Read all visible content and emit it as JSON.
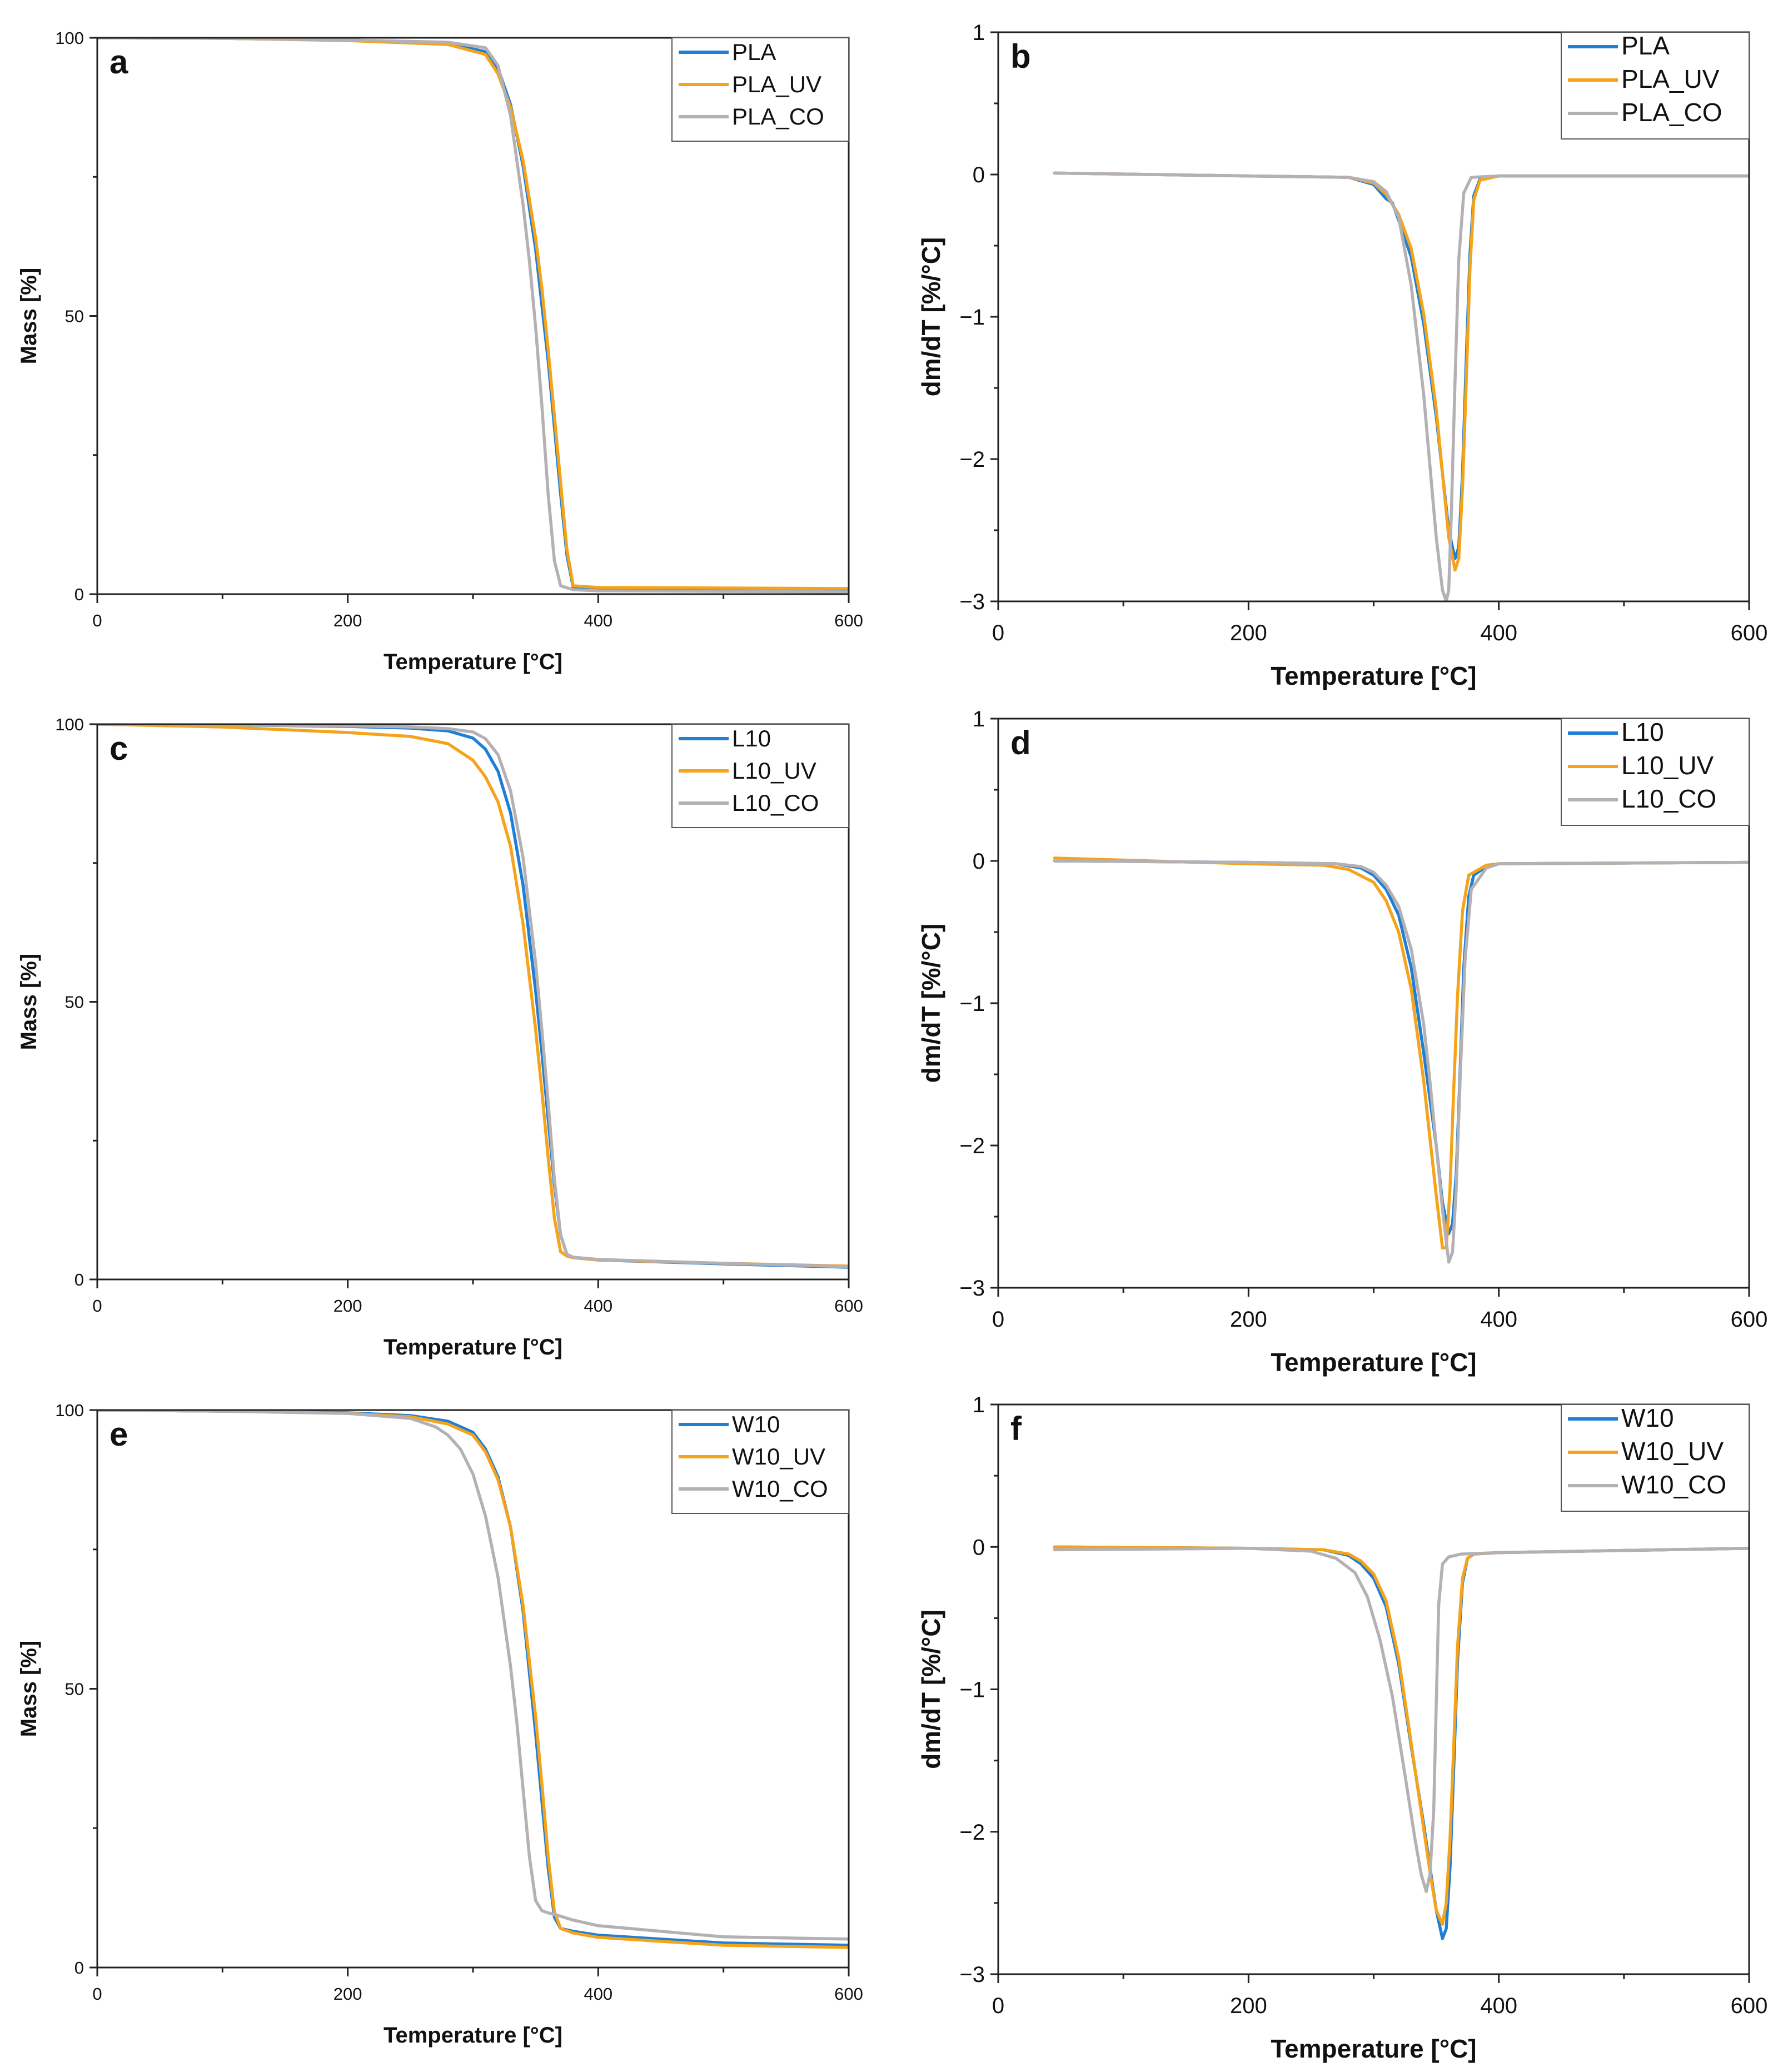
{
  "colors": {
    "PLA": "#1f7fd6",
    "UV": "#f5a31a",
    "CO": "#b4b0b4"
  },
  "chart_data": [
    {
      "panel": "a",
      "type": "line",
      "xlabel": "Temperature [°C]",
      "ylabel": "Mass [%]",
      "xlim": [
        0,
        600
      ],
      "ylim": [
        0,
        100
      ],
      "xticks": [
        "0",
        "200",
        "400",
        "600"
      ],
      "yticks": [
        "0",
        "50",
        "100"
      ],
      "legend": "top-right",
      "series": [
        {
          "name": "PLA",
          "x": [
            0,
            100,
            200,
            280,
            310,
            320,
            330,
            340,
            350,
            355,
            360,
            365,
            370,
            375,
            380,
            400,
            500,
            600
          ],
          "y": [
            100,
            99.9,
            99.6,
            99,
            97.5,
            94.5,
            88,
            77,
            62,
            52,
            42,
            30,
            18,
            7,
            1.2,
            1.0,
            0.8,
            0.6
          ]
        },
        {
          "name": "PLA_UV",
          "x": [
            0,
            100,
            200,
            280,
            310,
            320,
            330,
            340,
            350,
            355,
            360,
            365,
            370,
            375,
            380,
            400,
            500,
            600
          ],
          "y": [
            100,
            99.9,
            99.5,
            98.8,
            97,
            93.5,
            87.5,
            78,
            64,
            55,
            44,
            32,
            20,
            8,
            1.5,
            1.2,
            1.1,
            1.0
          ]
        },
        {
          "name": "PLA_CO",
          "x": [
            0,
            100,
            200,
            280,
            310,
            320,
            330,
            340,
            345,
            350,
            355,
            360,
            365,
            370,
            380,
            400,
            500,
            600
          ],
          "y": [
            100,
            99.9,
            99.6,
            99.2,
            98.2,
            95,
            86,
            70,
            60,
            48,
            34,
            18,
            6,
            1.5,
            0.8,
            0.6,
            0.5,
            0.4
          ]
        }
      ]
    },
    {
      "panel": "b",
      "type": "line",
      "xlabel": "Temperature [°C]",
      "ylabel": "dm/dT [%/°C]",
      "xlim": [
        0,
        600
      ],
      "ylim": [
        -3,
        1
      ],
      "xticks": [
        "0",
        "200",
        "400",
        "600"
      ],
      "yticks": [
        "−3",
        "−2",
        "−1",
        "0",
        "1"
      ],
      "legend": "top-right",
      "series": [
        {
          "name": "PLA",
          "x": [
            45,
            200,
            280,
            300,
            310,
            315,
            320,
            330,
            340,
            350,
            355,
            360,
            365,
            368,
            371,
            374,
            377,
            380,
            385,
            400,
            600
          ],
          "y": [
            0.01,
            -0.01,
            -0.02,
            -0.07,
            -0.17,
            -0.2,
            -0.32,
            -0.58,
            -1.05,
            -1.7,
            -2.1,
            -2.5,
            -2.7,
            -2.62,
            -2.1,
            -1.3,
            -0.55,
            -0.15,
            -0.03,
            -0.01,
            -0.01
          ]
        },
        {
          "name": "PLA_UV",
          "x": [
            45,
            200,
            280,
            300,
            310,
            320,
            330,
            340,
            350,
            355,
            360,
            365,
            368,
            371,
            374,
            377,
            380,
            385,
            400,
            600
          ],
          "y": [
            0.01,
            -0.01,
            -0.02,
            -0.06,
            -0.14,
            -0.28,
            -0.52,
            -0.98,
            -1.65,
            -2.1,
            -2.55,
            -2.78,
            -2.7,
            -2.2,
            -1.45,
            -0.65,
            -0.18,
            -0.04,
            -0.01,
            -0.01
          ]
        },
        {
          "name": "PLA_CO",
          "x": [
            45,
            200,
            280,
            300,
            310,
            320,
            330,
            340,
            345,
            350,
            355,
            358,
            360,
            362,
            365,
            368,
            372,
            378,
            400,
            600
          ],
          "y": [
            0.01,
            -0.01,
            -0.02,
            -0.05,
            -0.12,
            -0.3,
            -0.78,
            -1.55,
            -2.05,
            -2.55,
            -2.92,
            -3.0,
            -2.92,
            -2.4,
            -1.45,
            -0.6,
            -0.13,
            -0.02,
            -0.01,
            -0.01
          ]
        }
      ]
    },
    {
      "panel": "c",
      "type": "line",
      "xlabel": "Temperature [°C]",
      "ylabel": "Mass [%]",
      "xlim": [
        0,
        600
      ],
      "ylim": [
        0,
        100
      ],
      "xticks": [
        "0",
        "200",
        "400",
        "600"
      ],
      "yticks": [
        "0",
        "50",
        "100"
      ],
      "legend": "top-right",
      "series": [
        {
          "name": "L10",
          "x": [
            0,
            100,
            200,
            250,
            280,
            300,
            310,
            320,
            330,
            340,
            350,
            355,
            360,
            365,
            370,
            375,
            380,
            400,
            500,
            600
          ],
          "y": [
            100,
            99.9,
            99.6,
            99.3,
            98.8,
            97.5,
            95.5,
            91.5,
            84,
            71,
            52,
            41,
            29,
            17,
            8,
            4.5,
            4.0,
            3.5,
            2.8,
            2.2
          ]
        },
        {
          "name": "L10_UV",
          "x": [
            0,
            100,
            200,
            250,
            280,
            300,
            310,
            320,
            330,
            340,
            350,
            355,
            360,
            365,
            370,
            375,
            380,
            400,
            500,
            600
          ],
          "y": [
            100,
            99.5,
            98.5,
            97.8,
            96.5,
            93.5,
            90.5,
            86,
            78,
            64,
            45,
            34,
            22,
            11,
            5,
            4.2,
            3.9,
            3.5,
            2.9,
            2.4
          ]
        },
        {
          "name": "L10_CO",
          "x": [
            0,
            100,
            200,
            250,
            280,
            300,
            310,
            320,
            330,
            340,
            350,
            355,
            360,
            365,
            370,
            375,
            380,
            400,
            500,
            600
          ],
          "y": [
            100,
            99.9,
            99.7,
            99.5,
            99.2,
            98.6,
            97.4,
            94.5,
            88,
            76,
            57,
            45,
            32,
            18,
            8,
            4.5,
            4.0,
            3.6,
            2.9,
            2.3
          ]
        }
      ]
    },
    {
      "panel": "d",
      "type": "line",
      "xlabel": "Temperature [°C]",
      "ylabel": "dm/dT [%/°C]",
      "xlim": [
        0,
        600
      ],
      "ylim": [
        -3,
        1
      ],
      "xticks": [
        "0",
        "200",
        "400",
        "600"
      ],
      "yticks": [
        "−3",
        "−2",
        "−1",
        "0",
        "1"
      ],
      "legend": "top-right",
      "series": [
        {
          "name": "L10",
          "x": [
            45,
            200,
            270,
            290,
            300,
            310,
            320,
            330,
            340,
            350,
            355,
            360,
            363,
            366,
            369,
            372,
            376,
            380,
            390,
            400,
            600
          ],
          "y": [
            0.0,
            -0.01,
            -0.02,
            -0.05,
            -0.1,
            -0.2,
            -0.38,
            -0.75,
            -1.35,
            -2.0,
            -2.4,
            -2.62,
            -2.55,
            -2.2,
            -1.5,
            -0.75,
            -0.25,
            -0.1,
            -0.04,
            -0.02,
            -0.01
          ]
        },
        {
          "name": "L10_UV",
          "x": [
            45,
            200,
            260,
            280,
            300,
            310,
            320,
            330,
            340,
            345,
            350,
            355,
            358,
            361,
            364,
            367,
            371,
            376,
            390,
            400,
            600
          ],
          "y": [
            0.02,
            -0.02,
            -0.03,
            -0.06,
            -0.15,
            -0.28,
            -0.5,
            -0.9,
            -1.55,
            -1.95,
            -2.35,
            -2.72,
            -2.72,
            -2.3,
            -1.6,
            -0.95,
            -0.35,
            -0.1,
            -0.03,
            -0.02,
            -0.01
          ]
        },
        {
          "name": "L10_CO",
          "x": [
            45,
            200,
            270,
            290,
            300,
            310,
            320,
            330,
            340,
            345,
            350,
            355,
            360,
            363,
            366,
            369,
            373,
            378,
            390,
            400,
            600
          ],
          "y": [
            0.0,
            -0.01,
            -0.02,
            -0.04,
            -0.08,
            -0.17,
            -0.32,
            -0.62,
            -1.15,
            -1.55,
            -2.0,
            -2.45,
            -2.82,
            -2.75,
            -2.3,
            -1.55,
            -0.7,
            -0.2,
            -0.05,
            -0.02,
            -0.01
          ]
        }
      ]
    },
    {
      "panel": "e",
      "type": "line",
      "xlabel": "Temperature [°C]",
      "ylabel": "Mass [%]",
      "xlim": [
        0,
        600
      ],
      "ylim": [
        0,
        100
      ],
      "xticks": [
        "0",
        "200",
        "400",
        "600"
      ],
      "yticks": [
        "0",
        "50",
        "100"
      ],
      "legend": "top-right",
      "series": [
        {
          "name": "W10",
          "x": [
            0,
            100,
            200,
            250,
            280,
            300,
            310,
            320,
            330,
            340,
            350,
            355,
            360,
            365,
            370,
            380,
            400,
            500,
            600
          ],
          "y": [
            100,
            99.8,
            99.5,
            99,
            98,
            96,
            93,
            88,
            79,
            64,
            42,
            30,
            18,
            9,
            7,
            6.5,
            5.8,
            4.4,
            4.0
          ]
        },
        {
          "name": "W10_UV",
          "x": [
            0,
            100,
            200,
            250,
            280,
            300,
            310,
            320,
            330,
            340,
            350,
            355,
            360,
            365,
            370,
            380,
            400,
            500,
            600
          ],
          "y": [
            100,
            99.8,
            99.4,
            98.8,
            97.5,
            95.5,
            92.5,
            87.5,
            79,
            65,
            45,
            33,
            20,
            10,
            7,
            6.2,
            5.4,
            4.0,
            3.6
          ]
        },
        {
          "name": "W10_CO",
          "x": [
            0,
            100,
            200,
            250,
            270,
            280,
            290,
            300,
            310,
            320,
            330,
            335,
            340,
            345,
            350,
            355,
            360,
            370,
            380,
            400,
            500,
            600
          ],
          "y": [
            100,
            99.8,
            99.4,
            98.5,
            97,
            95.5,
            93,
            88.5,
            81,
            70,
            54,
            44,
            32,
            20,
            12,
            10.2,
            9.8,
            9.2,
            8.5,
            7.5,
            5.5,
            5.1
          ]
        }
      ]
    },
    {
      "panel": "f",
      "type": "line",
      "xlabel": "Temperature [°C]",
      "ylabel": "dm/dT [%/°C]",
      "xlim": [
        0,
        600
      ],
      "ylim": [
        -3,
        1
      ],
      "xticks": [
        "0",
        "200",
        "400",
        "600"
      ],
      "yticks": [
        "−3",
        "−2",
        "−1",
        "0",
        "1"
      ],
      "legend": "top-right",
      "series": [
        {
          "name": "W10",
          "x": [
            45,
            200,
            260,
            280,
            290,
            300,
            310,
            320,
            330,
            340,
            345,
            350,
            355,
            358,
            361,
            364,
            367,
            371,
            375,
            380,
            400,
            600
          ],
          "y": [
            0.0,
            -0.01,
            -0.02,
            -0.06,
            -0.12,
            -0.22,
            -0.42,
            -0.82,
            -1.4,
            -1.95,
            -2.25,
            -2.55,
            -2.75,
            -2.68,
            -2.25,
            -1.55,
            -0.8,
            -0.25,
            -0.08,
            -0.05,
            -0.04,
            -0.01
          ]
        },
        {
          "name": "W10_UV",
          "x": [
            45,
            200,
            260,
            280,
            290,
            300,
            310,
            320,
            330,
            340,
            345,
            350,
            355,
            358,
            361,
            364,
            367,
            371,
            375,
            380,
            400,
            600
          ],
          "y": [
            0.0,
            -0.01,
            -0.02,
            -0.05,
            -0.1,
            -0.19,
            -0.38,
            -0.78,
            -1.38,
            -1.98,
            -2.28,
            -2.55,
            -2.65,
            -2.5,
            -2.05,
            -1.4,
            -0.7,
            -0.22,
            -0.08,
            -0.05,
            -0.04,
            -0.01
          ]
        },
        {
          "name": "W10_CO",
          "x": [
            45,
            200,
            250,
            270,
            285,
            295,
            305,
            315,
            325,
            333,
            338,
            342,
            345,
            348,
            350,
            352,
            355,
            360,
            370,
            400,
            600
          ],
          "y": [
            -0.02,
            -0.01,
            -0.03,
            -0.08,
            -0.18,
            -0.35,
            -0.65,
            -1.05,
            -1.6,
            -2.05,
            -2.3,
            -2.42,
            -2.3,
            -1.85,
            -1.1,
            -0.4,
            -0.12,
            -0.07,
            -0.05,
            -0.04,
            -0.01
          ]
        }
      ]
    }
  ]
}
